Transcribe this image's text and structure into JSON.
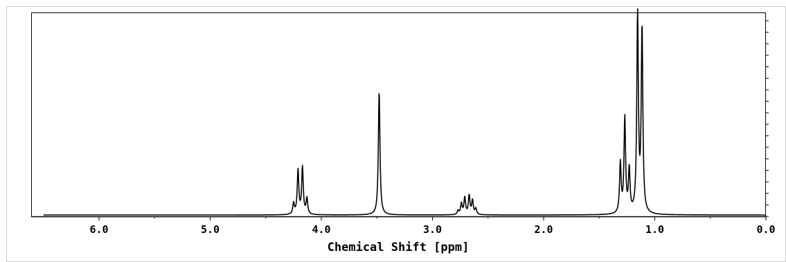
{
  "chart_data": {
    "type": "line",
    "title": "",
    "xlabel": "Chemical Shift [ppm]",
    "ylabel": "",
    "x_reversed": true,
    "xlim": [
      6.5,
      0.0
    ],
    "ylim": [
      0,
      1.0
    ],
    "grid": false,
    "legend": "none",
    "line_color": "#000000",
    "x_ticks": [
      {
        "value": 6.0,
        "label": "6.0"
      },
      {
        "value": 5.0,
        "label": "5.0"
      },
      {
        "value": 4.0,
        "label": "4.0"
      },
      {
        "value": 3.0,
        "label": "3.0"
      },
      {
        "value": 2.0,
        "label": "2.0"
      },
      {
        "value": 1.0,
        "label": "1.0"
      },
      {
        "value": 0.0,
        "label": "0.0"
      }
    ],
    "peaks": [
      {
        "ppm": 4.25,
        "height": 0.055
      },
      {
        "ppm": 4.21,
        "height": 0.22
      },
      {
        "ppm": 4.17,
        "height": 0.235
      },
      {
        "ppm": 4.13,
        "height": 0.08
      },
      {
        "ppm": 3.48,
        "height": 0.62
      },
      {
        "ppm": 2.77,
        "height": 0.02
      },
      {
        "ppm": 2.74,
        "height": 0.055
      },
      {
        "ppm": 2.71,
        "height": 0.085
      },
      {
        "ppm": 2.67,
        "height": 0.095
      },
      {
        "ppm": 2.64,
        "height": 0.07
      },
      {
        "ppm": 2.61,
        "height": 0.03
      },
      {
        "ppm": 1.31,
        "height": 0.25
      },
      {
        "ppm": 1.27,
        "height": 0.475
      },
      {
        "ppm": 1.23,
        "height": 0.215
      },
      {
        "ppm": 1.155,
        "height": 0.99
      },
      {
        "ppm": 1.115,
        "height": 0.92
      }
    ]
  }
}
